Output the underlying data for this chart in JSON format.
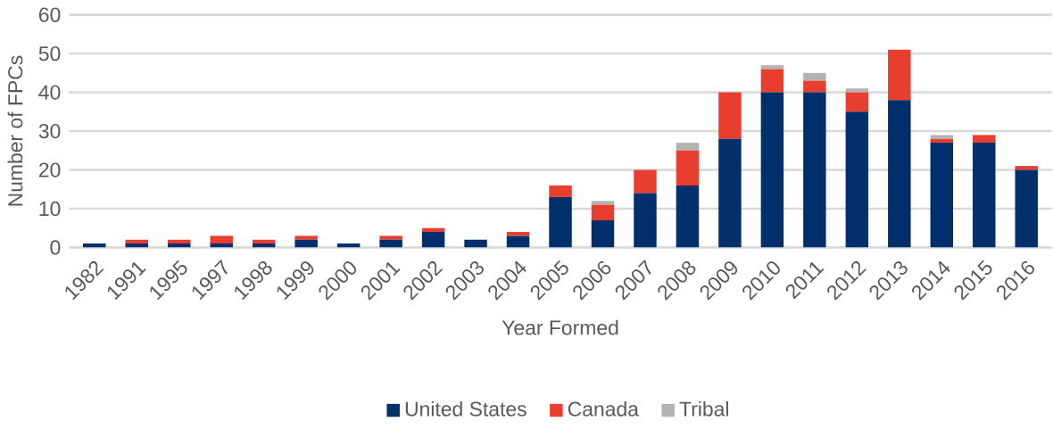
{
  "chart_data": {
    "type": "bar",
    "stacked": true,
    "xlabel": "Year Formed",
    "ylabel": "Number of FPCs",
    "categories": [
      "1982",
      "1991",
      "1995",
      "1997",
      "1998",
      "1999",
      "2000",
      "2001",
      "2002",
      "2003",
      "2004",
      "2005",
      "2006",
      "2007",
      "2008",
      "2009",
      "2010",
      "2011",
      "2012",
      "2013",
      "2014",
      "2015",
      "2016"
    ],
    "series": [
      {
        "name": "United States",
        "color": "#002f6c",
        "values": [
          1,
          1,
          1,
          1,
          1,
          2,
          1,
          2,
          4,
          2,
          3,
          13,
          7,
          14,
          16,
          28,
          40,
          40,
          35,
          38,
          27,
          27,
          20
        ]
      },
      {
        "name": "Canada",
        "color": "#e83e2f",
        "values": [
          0,
          1,
          1,
          2,
          1,
          1,
          0,
          1,
          1,
          0,
          1,
          3,
          4,
          6,
          9,
          12,
          6,
          3,
          5,
          13,
          1,
          2,
          1
        ]
      },
      {
        "name": "Tribal",
        "color": "#b3b3b3",
        "values": [
          0,
          0,
          0,
          0,
          0,
          0,
          0,
          0,
          0,
          0,
          0,
          0,
          1,
          0,
          2,
          0,
          1,
          2,
          1,
          0,
          1,
          0,
          0
        ]
      }
    ],
    "ylim": [
      0,
      60
    ],
    "yticks": [
      0,
      10,
      20,
      30,
      40,
      50,
      60
    ],
    "grid": "y",
    "legend": "bottom"
  }
}
